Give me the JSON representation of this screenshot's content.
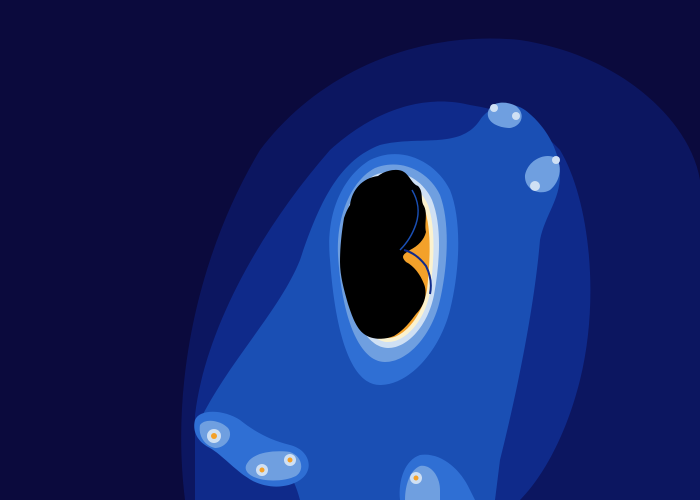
{
  "palette": {
    "background": "#0b0a3d",
    "band_1": "#0c1660",
    "band_2": "#0f2a8a",
    "band_3": "#1a4fb4",
    "band_4": "#2f6fd4",
    "band_5": "#6f9fe0",
    "band_6": "#cfe0f4",
    "glow_cream": "#fbf2cf",
    "glow_orange": "#f3a12a",
    "set_black": "#000000"
  },
  "fractal": {
    "subject": "mandelbrot-set-detail",
    "visible_text": ""
  }
}
